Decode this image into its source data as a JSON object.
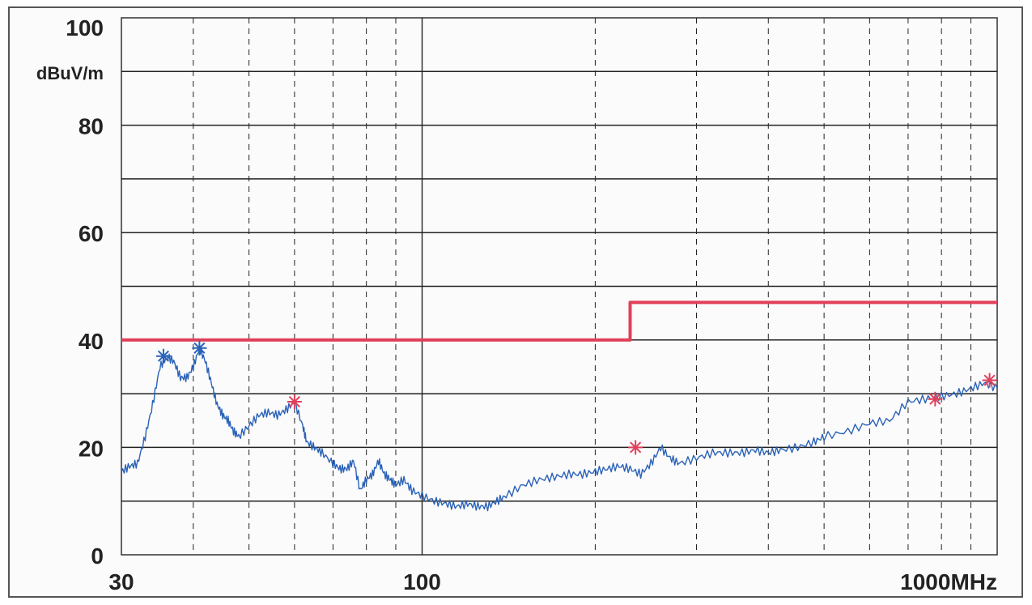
{
  "chart_data": {
    "type": "line",
    "xlabel": "",
    "ylabel": "dBuV/m",
    "xscale": "log",
    "xlim": [
      30,
      1000
    ],
    "ylim": [
      0,
      100
    ],
    "grid": true,
    "y_ticks": [
      {
        "value": 100,
        "label": "100"
      },
      {
        "value": 80,
        "label": "80"
      },
      {
        "value": 60,
        "label": "60"
      },
      {
        "value": 40,
        "label": "40"
      },
      {
        "value": 20,
        "label": "20"
      },
      {
        "value": 0,
        "label": "0"
      }
    ],
    "x_ticks": [
      {
        "value": 30,
        "label": "30"
      },
      {
        "value": 100,
        "label": "100"
      },
      {
        "value": 1000,
        "label": "1000MHz"
      }
    ],
    "y_unit_label": "dBuV/m",
    "series": [
      {
        "color": "#2a62b8",
        "x": [
          30,
          31,
          32,
          33,
          34,
          35,
          36,
          37,
          38,
          39,
          40,
          41,
          42,
          43,
          44,
          45,
          46,
          47,
          48,
          50,
          52,
          54,
          56,
          58,
          60,
          62,
          63,
          65,
          67,
          70,
          72,
          74,
          76,
          78,
          80,
          82,
          84,
          86,
          88,
          90,
          93,
          96,
          100,
          105,
          110,
          115,
          120,
          125,
          130,
          135,
          140,
          150,
          160,
          170,
          180,
          190,
          200,
          210,
          220,
          230,
          240,
          250,
          260,
          270,
          280,
          300,
          320,
          340,
          360,
          380,
          400,
          420,
          450,
          480,
          500,
          550,
          600,
          650,
          700,
          750,
          800,
          850,
          900,
          950,
          1000
        ],
        "y": [
          15.5,
          16.5,
          17,
          22,
          28,
          35,
          37,
          36,
          33,
          33,
          35,
          38.5,
          36,
          32,
          28,
          26,
          25,
          23,
          22,
          24,
          26,
          26.5,
          26,
          27,
          28.5,
          24,
          21,
          20,
          19,
          17,
          16,
          16,
          17.5,
          12,
          14,
          15,
          17.5,
          15,
          14,
          13,
          14,
          12,
          11,
          10,
          9.5,
          9,
          9.5,
          9,
          9,
          10,
          11,
          13,
          14,
          14.5,
          15,
          15,
          15.5,
          16,
          16.5,
          16,
          15,
          17,
          20,
          18,
          17,
          18,
          19,
          19,
          19,
          19.5,
          19,
          19.5,
          20,
          21,
          22,
          23,
          24.5,
          25,
          28.5,
          29,
          29.5,
          30,
          31,
          32,
          31
        ]
      },
      {
        "color": "#e0405a",
        "x": [
          30,
          230,
          230,
          1000
        ],
        "y": [
          40,
          40,
          47,
          47
        ]
      }
    ],
    "markers": [
      {
        "x": 35.5,
        "y": 37,
        "color": "#2a62b8"
      },
      {
        "x": 41,
        "y": 38.5,
        "color": "#2a62b8"
      },
      {
        "x": 60,
        "y": 28.5,
        "color": "#e0405a"
      },
      {
        "x": 235,
        "y": 20,
        "color": "#e0405a"
      },
      {
        "x": 780,
        "y": 29,
        "color": "#e0405a"
      },
      {
        "x": 970,
        "y": 32.5,
        "color": "#e0405a"
      }
    ]
  }
}
